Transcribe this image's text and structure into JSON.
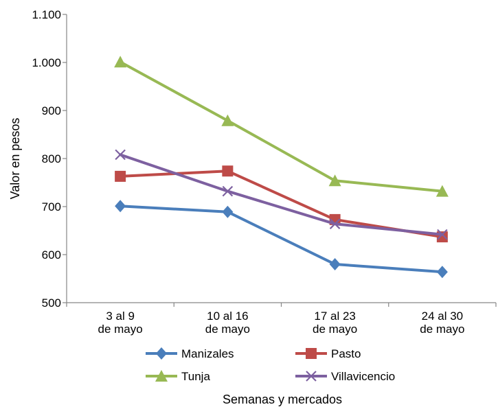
{
  "chart_data": {
    "type": "line",
    "categories": [
      [
        "3 al 9",
        "de mayo"
      ],
      [
        "10 al 16",
        "de mayo"
      ],
      [
        "17 al 23",
        "de mayo"
      ],
      [
        "24 al 30",
        "de mayo"
      ]
    ],
    "xlabel": "Semanas y mercados",
    "ylabel": "Valor en pesos",
    "ylim": [
      500,
      1100
    ],
    "yticks": [
      500,
      600,
      700,
      800,
      900,
      1000,
      1100
    ],
    "ytick_labels": [
      "500",
      "600",
      "700",
      "800",
      "900",
      "1.000",
      "1.100"
    ],
    "grid": false,
    "legend_position": "bottom",
    "series": [
      {
        "name": "Manizales",
        "values": [
          701,
          689,
          580,
          564
        ],
        "color": "#4a7ebb",
        "marker": "diamond"
      },
      {
        "name": "Pasto",
        "values": [
          763,
          774,
          673,
          637
        ],
        "color": "#be4b48",
        "marker": "square"
      },
      {
        "name": "Tunja",
        "values": [
          1001,
          879,
          754,
          732
        ],
        "color": "#98b954",
        "marker": "triangle"
      },
      {
        "name": "Villavicencio",
        "values": [
          808,
          732,
          664,
          642
        ],
        "color": "#7d60a0",
        "marker": "x"
      }
    ]
  }
}
